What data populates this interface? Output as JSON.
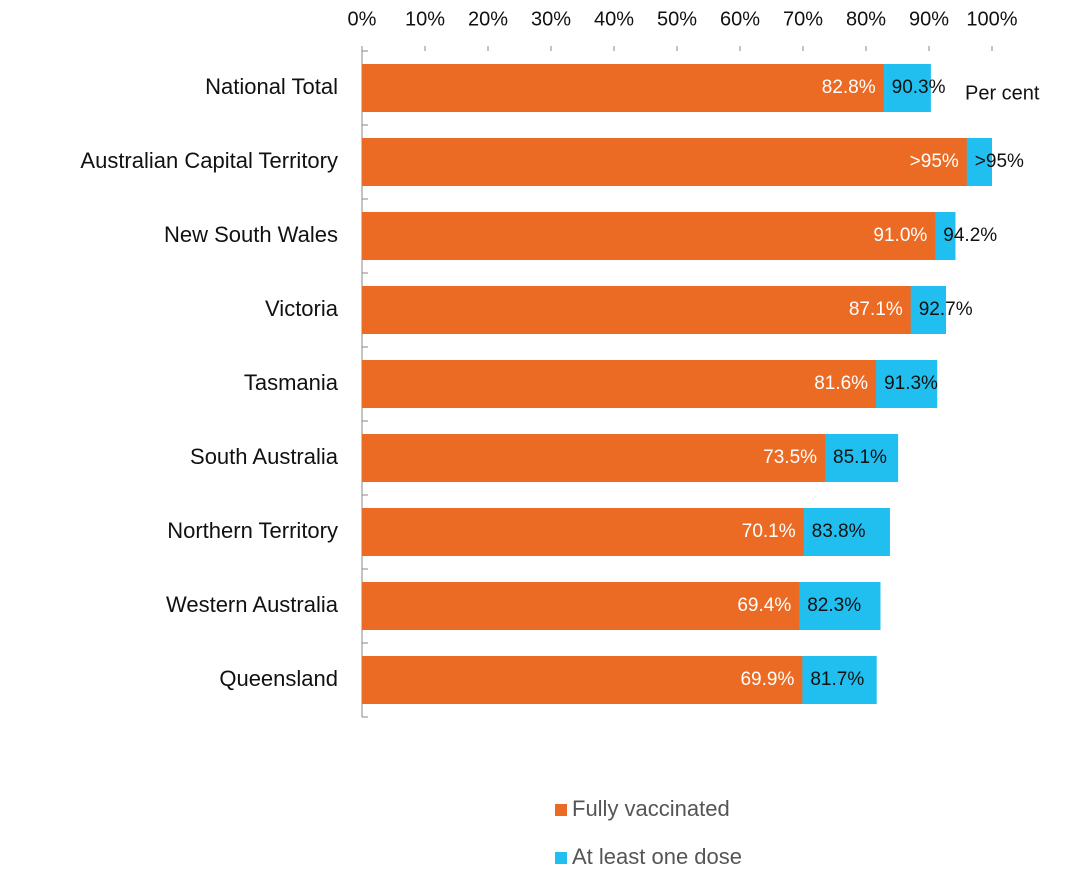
{
  "chart_data": {
    "type": "bar",
    "orientation": "horizontal",
    "categories": [
      "National Total",
      "Australian Capital Territory",
      "New South Wales",
      "Victoria",
      "Tasmania",
      "South Australia",
      "Northern Territory",
      "Western Australia",
      "Queensland"
    ],
    "series": [
      {
        "name": "Fully vaccinated",
        "color": "#ec6b24",
        "values": [
          82.8,
          96,
          91.0,
          87.1,
          81.6,
          73.5,
          70.1,
          69.4,
          69.9
        ],
        "value_labels": [
          "82.8%",
          ">95%",
          "91.0%",
          "87.1%",
          "81.6%",
          "73.5%",
          "70.1%",
          "69.4%",
          "69.9%"
        ]
      },
      {
        "name": "At least one dose",
        "color": "#20bfef",
        "values": [
          90.3,
          100,
          94.2,
          92.7,
          91.3,
          85.1,
          83.8,
          82.3,
          81.7
        ],
        "value_labels": [
          "90.3%",
          ">95%",
          "94.2%",
          "92.7%",
          "91.3%",
          "85.1%",
          "83.8%",
          "82.3%",
          "81.7%"
        ]
      }
    ],
    "xlim": [
      0,
      100
    ],
    "xticks": [
      {
        "value": 0,
        "label": "0%"
      },
      {
        "value": 10,
        "label": "10%"
      },
      {
        "value": 20,
        "label": "20%"
      },
      {
        "value": 30,
        "label": "30%"
      },
      {
        "value": 40,
        "label": "40%"
      },
      {
        "value": 50,
        "label": "50%"
      },
      {
        "value": 60,
        "label": "60%"
      },
      {
        "value": 70,
        "label": "70%"
      },
      {
        "value": 80,
        "label": "80%"
      },
      {
        "value": 90,
        "label": "90%"
      },
      {
        "value": 100,
        "label": "100%"
      }
    ],
    "annotation": "Per cent",
    "legend": "bottom"
  }
}
